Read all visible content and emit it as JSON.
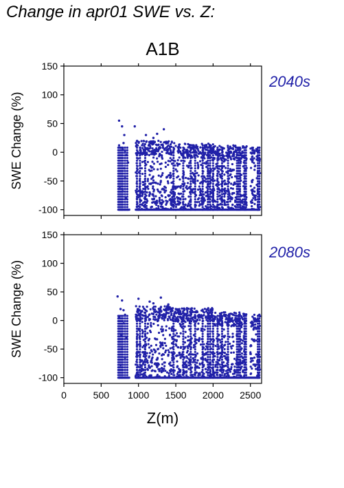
{
  "title": "Change in apr01 SWE vs. Z:",
  "scenario": "A1B",
  "xlabel": "Z(m)",
  "accent_color": "#2020a8",
  "chart_data": [
    {
      "type": "scatter",
      "label": "2040s",
      "ylabel": "SWE Change (%)",
      "xlabel": "Z(m)",
      "xlim": [
        0,
        2650
      ],
      "ylim": [
        -110,
        150
      ],
      "xticks": [
        0,
        500,
        1000,
        1500,
        2000,
        2500
      ],
      "yticks": [
        -100,
        -50,
        0,
        50,
        100,
        150
      ],
      "grid": false,
      "marker_color": "#2020a8",
      "points": [
        [
          740,
          55
        ],
        [
          780,
          45
        ],
        [
          810,
          30
        ],
        [
          740,
          12
        ],
        [
          760,
          8
        ],
        [
          790,
          5
        ],
        [
          800,
          16
        ],
        [
          820,
          2
        ],
        [
          840,
          -5
        ],
        [
          750,
          -60
        ],
        [
          860,
          -18
        ],
        [
          810,
          -28
        ],
        [
          820,
          -45
        ],
        [
          790,
          -68
        ],
        [
          830,
          -80
        ],
        [
          950,
          45
        ],
        [
          1250,
          32
        ],
        [
          1340,
          40
        ],
        [
          1100,
          30
        ],
        [
          1200,
          25
        ],
        [
          1020,
          -55
        ],
        [
          1080,
          -80
        ],
        [
          1150,
          -70
        ],
        [
          1300,
          -50
        ],
        [
          1400,
          -75
        ],
        [
          1480,
          -85
        ],
        [
          1250,
          -88
        ],
        [
          1180,
          -95
        ],
        [
          1350,
          -60
        ],
        [
          1420,
          -40
        ],
        [
          1500,
          -30
        ],
        [
          1600,
          -45
        ],
        [
          1700,
          -55
        ],
        [
          1800,
          -65
        ],
        [
          1900,
          -70
        ],
        [
          2000,
          -80
        ],
        [
          2100,
          -90
        ],
        [
          1000,
          -100
        ],
        [
          1500,
          -100
        ],
        [
          2000,
          -100
        ],
        [
          2600,
          -100
        ],
        [
          2350,
          5
        ],
        [
          2620,
          8
        ],
        [
          1450,
          -20
        ]
      ],
      "dense_bands": [
        {
          "x": [
            960,
            1480
          ],
          "y": [
            -100,
            20
          ]
        },
        {
          "x": [
            1480,
            2000
          ],
          "y": [
            -100,
            15
          ]
        },
        {
          "x": [
            2000,
            2450
          ],
          "y": [
            -100,
            12
          ]
        },
        {
          "x": [
            2500,
            2630
          ],
          "y": [
            -100,
            8
          ]
        }
      ],
      "columns": [
        730,
        750,
        770,
        790,
        820,
        850,
        980,
        1020,
        1090,
        1470,
        1600,
        1700,
        1760,
        1860,
        1930,
        1960,
        2000,
        2060,
        2120,
        2200,
        2320,
        2340,
        2360,
        2420,
        2440,
        2600,
        2620
      ],
      "stripe_y": [
        -100,
        -100
      ]
    },
    {
      "type": "scatter",
      "label": "2080s",
      "ylabel": "SWE Change (%)",
      "xlabel": "Z(m)",
      "xlim": [
        0,
        2650
      ],
      "ylim": [
        -110,
        150
      ],
      "xticks": [
        0,
        500,
        1000,
        1500,
        2000,
        2500
      ],
      "yticks": [
        -100,
        -50,
        0,
        50,
        100,
        150
      ],
      "grid": false,
      "marker_color": "#2020a8",
      "points": [
        [
          720,
          42
        ],
        [
          780,
          35
        ],
        [
          760,
          20
        ],
        [
          800,
          18
        ],
        [
          820,
          10
        ],
        [
          740,
          5
        ],
        [
          800,
          -5
        ],
        [
          770,
          -25
        ],
        [
          840,
          -30
        ],
        [
          780,
          -50
        ],
        [
          820,
          -65
        ],
        [
          760,
          -78
        ],
        [
          1000,
          38
        ],
        [
          1150,
          33
        ],
        [
          1300,
          40
        ],
        [
          1200,
          30
        ],
        [
          1400,
          28
        ],
        [
          1050,
          -70
        ],
        [
          1120,
          -85
        ],
        [
          1250,
          -75
        ],
        [
          1400,
          -60
        ],
        [
          1550,
          -90
        ],
        [
          1700,
          -70
        ],
        [
          1900,
          -85
        ],
        [
          2050,
          -95
        ],
        [
          1000,
          -100
        ],
        [
          1500,
          -100
        ],
        [
          2000,
          -100
        ],
        [
          2600,
          -100
        ],
        [
          2350,
          10
        ],
        [
          2620,
          10
        ]
      ],
      "dense_bands": [
        {
          "x": [
            960,
            1480
          ],
          "y": [
            -100,
            25
          ]
        },
        {
          "x": [
            1480,
            2000
          ],
          "y": [
            -100,
            22
          ]
        },
        {
          "x": [
            2000,
            2450
          ],
          "y": [
            -100,
            15
          ]
        },
        {
          "x": [
            2500,
            2630
          ],
          "y": [
            -100,
            10
          ]
        }
      ],
      "columns": [
        730,
        750,
        770,
        790,
        820,
        850,
        980,
        1020,
        1090,
        1470,
        1600,
        1700,
        1760,
        1860,
        1930,
        1960,
        2000,
        2060,
        2120,
        2200,
        2320,
        2340,
        2360,
        2420,
        2440,
        2600,
        2620
      ],
      "stripe_y": [
        -100,
        -100
      ]
    }
  ]
}
